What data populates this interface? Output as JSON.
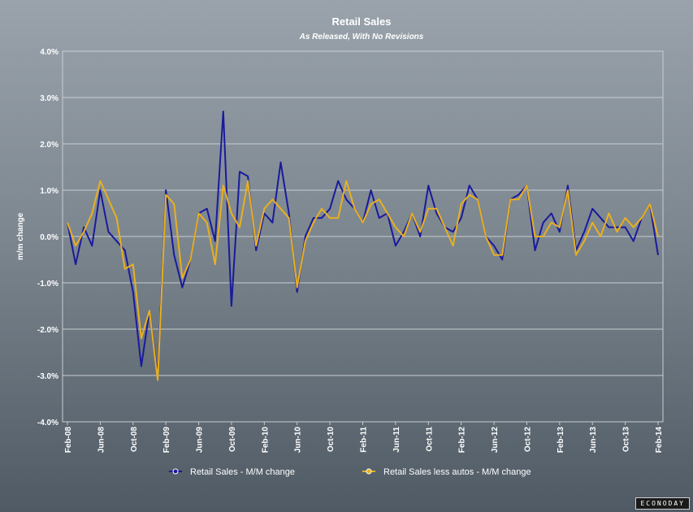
{
  "chart_data": {
    "type": "line",
    "title": "Retail Sales",
    "subtitle": "As Released, With No Revisions",
    "ylabel": "m/m change",
    "xlabel": "",
    "ylim": [
      -4.0,
      4.0
    ],
    "yticks": [
      "-4.0%",
      "-3.0%",
      "-2.0%",
      "-1.0%",
      "0.0%",
      "1.0%",
      "2.0%",
      "3.0%",
      "4.0%"
    ],
    "xtick_labels": [
      "Feb-08",
      "Jun-08",
      "Oct-08",
      "Feb-09",
      "Jun-09",
      "Oct-09",
      "Feb-10",
      "Jun-10",
      "Oct-10",
      "Feb-11",
      "Jun-11",
      "Oct-11",
      "Feb-12",
      "Jun-12",
      "Oct-12",
      "Feb-13",
      "Jun-13",
      "Oct-13",
      "Feb-14"
    ],
    "grid": true,
    "legend_position": "bottom",
    "x": [
      "Feb-08",
      "Mar-08",
      "Apr-08",
      "May-08",
      "Jun-08",
      "Jul-08",
      "Aug-08",
      "Sep-08",
      "Oct-08",
      "Nov-08",
      "Dec-08",
      "Jan-09",
      "Feb-09",
      "Mar-09",
      "Apr-09",
      "May-09",
      "Jun-09",
      "Jul-09",
      "Aug-09",
      "Sep-09",
      "Oct-09",
      "Nov-09",
      "Dec-09",
      "Jan-10",
      "Feb-10",
      "Mar-10",
      "Apr-10",
      "May-10",
      "Jun-10",
      "Jul-10",
      "Aug-10",
      "Sep-10",
      "Oct-10",
      "Nov-10",
      "Dec-10",
      "Jan-11",
      "Feb-11",
      "Mar-11",
      "Apr-11",
      "May-11",
      "Jun-11",
      "Jul-11",
      "Aug-11",
      "Sep-11",
      "Oct-11",
      "Nov-11",
      "Dec-11",
      "Jan-12",
      "Feb-12",
      "Mar-12",
      "Apr-12",
      "May-12",
      "Jun-12",
      "Jul-12",
      "Aug-12",
      "Sep-12",
      "Oct-12",
      "Nov-12",
      "Dec-12",
      "Jan-13",
      "Feb-13",
      "Mar-13",
      "Apr-13",
      "May-13",
      "Jun-13",
      "Jul-13",
      "Aug-13",
      "Sep-13",
      "Oct-13",
      "Nov-13",
      "Dec-13",
      "Jan-14",
      "Feb-14"
    ],
    "series": [
      {
        "name": "Retail Sales - M/M change",
        "color": "#1a1a9c",
        "values": [
          0.3,
          -0.6,
          0.2,
          -0.2,
          1.0,
          0.1,
          -0.1,
          -0.3,
          -1.2,
          -2.8,
          -1.6,
          -3.0,
          1.0,
          -0.4,
          -1.1,
          -0.5,
          0.5,
          0.6,
          -0.1,
          2.7,
          -1.5,
          1.4,
          1.3,
          -0.3,
          0.5,
          0.3,
          1.6,
          0.5,
          -1.2,
          0.0,
          0.4,
          0.4,
          0.6,
          1.2,
          0.8,
          0.6,
          0.3,
          1.0,
          0.4,
          0.5,
          -0.2,
          0.1,
          0.5,
          0.0,
          1.1,
          0.5,
          0.2,
          0.1,
          0.4,
          1.1,
          0.8,
          0.0,
          -0.2,
          -0.5,
          0.8,
          0.9,
          1.1,
          -0.3,
          0.3,
          0.5,
          0.1,
          1.1,
          -0.3,
          0.1,
          0.6,
          0.4,
          0.2,
          0.2,
          0.2,
          -0.1,
          0.4,
          0.7,
          -0.4
        ]
      },
      {
        "name": "Retail Sales less autos - M/M change",
        "color": "#e8b020",
        "values": [
          0.3,
          -0.2,
          0.1,
          0.5,
          1.2,
          0.8,
          0.4,
          -0.7,
          -0.6,
          -2.2,
          -1.6,
          -3.1,
          0.9,
          0.7,
          -0.9,
          -0.5,
          0.5,
          0.3,
          -0.6,
          1.1,
          0.5,
          0.2,
          1.2,
          -0.2,
          0.6,
          0.8,
          0.6,
          0.4,
          -1.1,
          -0.1,
          0.3,
          0.6,
          0.4,
          0.4,
          1.2,
          0.6,
          0.3,
          0.7,
          0.8,
          0.5,
          0.2,
          0.0,
          0.5,
          0.1,
          0.6,
          0.6,
          0.2,
          -0.2,
          0.7,
          0.9,
          0.8,
          0.0,
          -0.4,
          -0.4,
          0.8,
          0.8,
          1.1,
          0.0,
          0.0,
          0.3,
          0.2,
          1.0,
          -0.4,
          -0.1,
          0.3,
          0.0,
          0.5,
          0.1,
          0.4,
          0.2,
          0.4,
          0.7,
          0.0
        ]
      }
    ]
  },
  "brand": "ECONODAY"
}
